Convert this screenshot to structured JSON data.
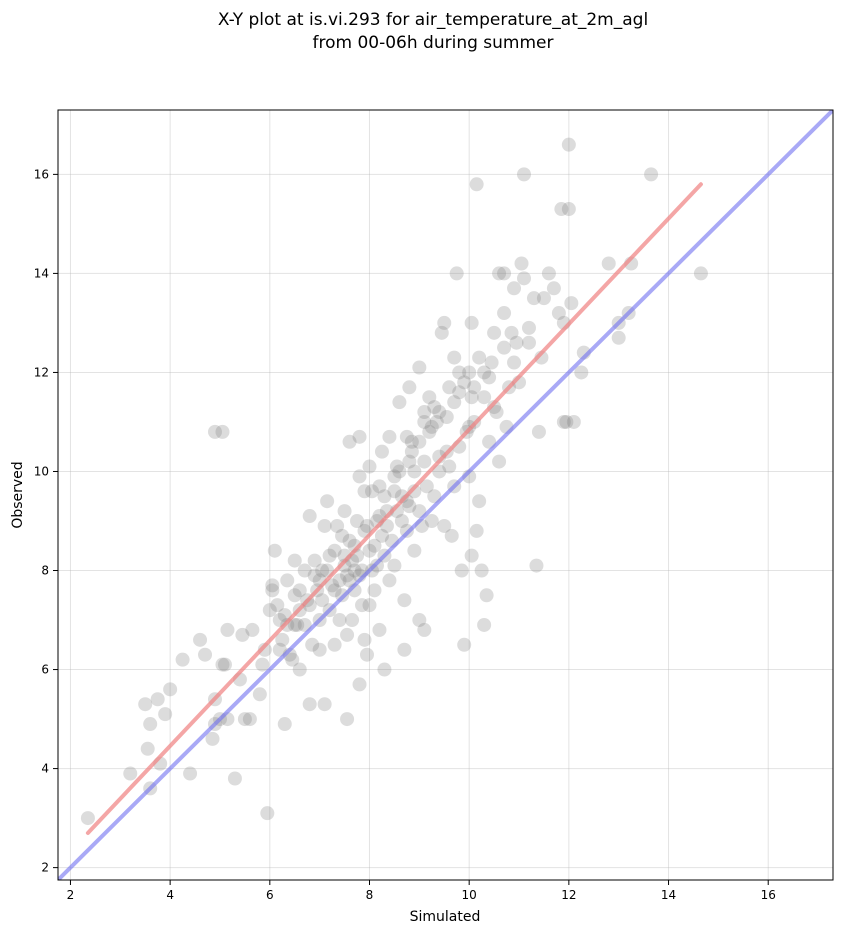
{
  "chart_data": {
    "type": "scatter",
    "title": [
      "X-Y plot at is.vi.293 for air_temperature_at_2m_agl",
      "from 00-06h during summer"
    ],
    "xlabel": "Simulated",
    "ylabel": "Observed",
    "xlim": [
      1.75,
      17.3
    ],
    "ylim": [
      1.75,
      17.3
    ],
    "xticks": [
      2,
      4,
      6,
      8,
      10,
      12,
      14,
      16
    ],
    "yticks": [
      2,
      4,
      6,
      8,
      10,
      12,
      14,
      16
    ],
    "grid": true,
    "colors": {
      "points": "#808080",
      "regression": "#f08080",
      "identity": "#7070f0"
    },
    "regression_line": {
      "x": [
        2.35,
        14.65
      ],
      "y": [
        2.7,
        15.8
      ]
    },
    "identity_line": {
      "x": [
        1.75,
        17.3
      ],
      "y": [
        1.75,
        17.3
      ]
    },
    "points": [
      [
        2.35,
        3.0
      ],
      [
        3.2,
        3.9
      ],
      [
        3.6,
        3.6
      ],
      [
        3.6,
        4.9
      ],
      [
        3.55,
        4.4
      ],
      [
        3.5,
        5.3
      ],
      [
        3.75,
        5.4
      ],
      [
        3.9,
        5.1
      ],
      [
        4.0,
        5.6
      ],
      [
        3.8,
        4.1
      ],
      [
        4.25,
        6.2
      ],
      [
        4.4,
        3.9
      ],
      [
        4.6,
        6.6
      ],
      [
        4.7,
        6.3
      ],
      [
        4.85,
        4.6
      ],
      [
        4.9,
        5.4
      ],
      [
        4.9,
        4.9
      ],
      [
        5.0,
        5.0
      ],
      [
        5.1,
        6.1
      ],
      [
        5.05,
        6.1
      ],
      [
        5.15,
        5.0
      ],
      [
        5.15,
        6.8
      ],
      [
        5.3,
        3.8
      ],
      [
        5.4,
        5.8
      ],
      [
        5.45,
        6.7
      ],
      [
        5.5,
        5.0
      ],
      [
        5.6,
        5.0
      ],
      [
        5.65,
        6.8
      ],
      [
        5.8,
        5.5
      ],
      [
        5.85,
        6.1
      ],
      [
        5.9,
        6.4
      ],
      [
        5.95,
        3.1
      ],
      [
        6.0,
        7.2
      ],
      [
        6.05,
        7.6
      ],
      [
        6.1,
        8.4
      ],
      [
        6.2,
        7.0
      ],
      [
        6.25,
        6.6
      ],
      [
        6.3,
        7.1
      ],
      [
        6.3,
        4.9
      ],
      [
        6.35,
        7.8
      ],
      [
        6.4,
        6.3
      ],
      [
        6.45,
        6.2
      ],
      [
        6.5,
        7.5
      ],
      [
        6.5,
        8.2
      ],
      [
        6.55,
        6.9
      ],
      [
        6.6,
        6.0
      ],
      [
        6.6,
        7.2
      ],
      [
        6.7,
        6.9
      ],
      [
        6.75,
        7.4
      ],
      [
        6.8,
        9.1
      ],
      [
        6.8,
        5.3
      ],
      [
        6.85,
        6.5
      ],
      [
        6.9,
        7.9
      ],
      [
        6.9,
        8.2
      ],
      [
        7.0,
        7.0
      ],
      [
        7.0,
        6.4
      ],
      [
        7.05,
        8.0
      ],
      [
        7.1,
        5.3
      ],
      [
        7.1,
        8.9
      ],
      [
        7.15,
        9.4
      ],
      [
        7.2,
        7.2
      ],
      [
        7.25,
        7.7
      ],
      [
        7.3,
        8.4
      ],
      [
        7.3,
        6.5
      ],
      [
        7.35,
        8.9
      ],
      [
        7.4,
        7.8
      ],
      [
        7.45,
        7.5
      ],
      [
        7.5,
        9.2
      ],
      [
        7.5,
        8.1
      ],
      [
        7.55,
        6.7
      ],
      [
        7.55,
        5.0
      ],
      [
        7.6,
        10.6
      ],
      [
        7.6,
        8.6
      ],
      [
        7.65,
        7.0
      ],
      [
        7.7,
        8.0
      ],
      [
        7.7,
        7.6
      ],
      [
        7.75,
        8.3
      ],
      [
        7.8,
        5.7
      ],
      [
        7.8,
        9.9
      ],
      [
        7.8,
        10.7
      ],
      [
        7.85,
        7.3
      ],
      [
        7.9,
        9.6
      ],
      [
        7.9,
        6.6
      ],
      [
        7.95,
        6.3
      ],
      [
        8.0,
        8.4
      ],
      [
        8.0,
        10.1
      ],
      [
        8.05,
        8.0
      ],
      [
        8.1,
        7.6
      ],
      [
        8.15,
        9.0
      ],
      [
        8.2,
        9.7
      ],
      [
        8.2,
        6.8
      ],
      [
        8.25,
        10.4
      ],
      [
        8.3,
        8.3
      ],
      [
        8.3,
        6.0
      ],
      [
        8.35,
        8.9
      ],
      [
        8.4,
        7.8
      ],
      [
        8.4,
        10.7
      ],
      [
        8.5,
        9.6
      ],
      [
        8.5,
        8.1
      ],
      [
        8.55,
        10.1
      ],
      [
        8.6,
        11.4
      ],
      [
        8.65,
        9.0
      ],
      [
        8.7,
        7.4
      ],
      [
        8.7,
        6.4
      ],
      [
        8.75,
        8.8
      ],
      [
        8.75,
        10.7
      ],
      [
        8.8,
        9.3
      ],
      [
        8.8,
        11.7
      ],
      [
        8.85,
        10.4
      ],
      [
        8.9,
        8.4
      ],
      [
        8.9,
        9.6
      ],
      [
        9.0,
        12.1
      ],
      [
        9.0,
        7.0
      ],
      [
        9.05,
        8.9
      ],
      [
        9.1,
        11.2
      ],
      [
        9.1,
        6.8
      ],
      [
        9.15,
        9.7
      ],
      [
        9.2,
        10.8
      ],
      [
        9.25,
        9.0
      ],
      [
        9.3,
        11.3
      ],
      [
        9.35,
        11.0
      ],
      [
        9.4,
        10.3
      ],
      [
        9.45,
        12.8
      ],
      [
        9.5,
        8.9
      ],
      [
        9.5,
        13.0
      ],
      [
        9.55,
        11.1
      ],
      [
        9.6,
        10.1
      ],
      [
        9.65,
        8.7
      ],
      [
        9.7,
        12.3
      ],
      [
        9.7,
        9.7
      ],
      [
        9.75,
        14.0
      ],
      [
        9.8,
        11.6
      ],
      [
        9.8,
        10.5
      ],
      [
        9.85,
        8.0
      ],
      [
        9.9,
        6.5
      ],
      [
        9.95,
        10.8
      ],
      [
        10.0,
        12.0
      ],
      [
        10.0,
        9.9
      ],
      [
        10.05,
        8.3
      ],
      [
        10.05,
        13.0
      ],
      [
        10.1,
        11.7
      ],
      [
        10.15,
        8.8
      ],
      [
        10.15,
        15.8
      ],
      [
        10.2,
        12.3
      ],
      [
        10.2,
        9.4
      ],
      [
        10.25,
        8.0
      ],
      [
        10.3,
        6.9
      ],
      [
        10.35,
        7.5
      ],
      [
        10.4,
        10.6
      ],
      [
        10.4,
        11.9
      ],
      [
        10.45,
        12.2
      ],
      [
        10.5,
        12.8
      ],
      [
        10.55,
        11.2
      ],
      [
        10.6,
        14.0
      ],
      [
        10.7,
        13.2
      ],
      [
        10.7,
        14.0
      ],
      [
        10.75,
        10.9
      ],
      [
        10.8,
        11.7
      ],
      [
        10.85,
        12.8
      ],
      [
        10.9,
        13.7
      ],
      [
        10.95,
        12.6
      ],
      [
        11.0,
        11.8
      ],
      [
        11.05,
        14.2
      ],
      [
        11.1,
        16.0
      ],
      [
        11.1,
        13.9
      ],
      [
        11.2,
        12.9
      ],
      [
        11.3,
        13.5
      ],
      [
        11.35,
        8.1
      ],
      [
        11.4,
        10.8
      ],
      [
        11.45,
        12.3
      ],
      [
        11.5,
        13.5
      ],
      [
        11.6,
        14.0
      ],
      [
        11.7,
        13.7
      ],
      [
        11.8,
        13.2
      ],
      [
        11.85,
        15.3
      ],
      [
        11.9,
        13.0
      ],
      [
        11.95,
        11.0
      ],
      [
        12.0,
        16.6
      ],
      [
        12.0,
        15.3
      ],
      [
        12.05,
        13.4
      ],
      [
        12.1,
        11.0
      ],
      [
        12.25,
        12.0
      ],
      [
        12.3,
        12.4
      ],
      [
        12.8,
        14.2
      ],
      [
        13.0,
        13.0
      ],
      [
        13.0,
        12.7
      ],
      [
        13.2,
        13.2
      ],
      [
        13.25,
        14.2
      ],
      [
        13.65,
        16.0
      ],
      [
        14.65,
        14.0
      ],
      [
        4.9,
        10.8
      ],
      [
        5.05,
        10.8
      ],
      [
        6.05,
        7.7
      ],
      [
        6.2,
        6.4
      ],
      [
        6.5,
        6.9
      ],
      [
        6.7,
        8.0
      ],
      [
        6.95,
        7.6
      ],
      [
        7.0,
        7.8
      ],
      [
        7.15,
        8.0
      ],
      [
        7.3,
        7.6
      ],
      [
        7.4,
        7.0
      ],
      [
        7.5,
        8.3
      ],
      [
        7.6,
        7.8
      ],
      [
        7.7,
        8.5
      ],
      [
        7.75,
        9.0
      ],
      [
        7.85,
        8.0
      ],
      [
        7.9,
        8.8
      ],
      [
        8.0,
        7.3
      ],
      [
        8.1,
        8.5
      ],
      [
        8.2,
        9.1
      ],
      [
        8.3,
        9.5
      ],
      [
        8.45,
        8.6
      ],
      [
        8.55,
        9.2
      ],
      [
        8.65,
        9.5
      ],
      [
        8.8,
        10.2
      ],
      [
        8.9,
        10.0
      ],
      [
        9.0,
        10.6
      ],
      [
        9.1,
        10.2
      ],
      [
        9.2,
        11.5
      ],
      [
        9.3,
        9.5
      ],
      [
        9.4,
        11.2
      ],
      [
        9.55,
        10.4
      ],
      [
        9.7,
        11.4
      ],
      [
        9.9,
        11.8
      ],
      [
        10.0,
        10.9
      ],
      [
        10.1,
        11.0
      ],
      [
        10.3,
        11.5
      ],
      [
        10.5,
        11.3
      ],
      [
        10.6,
        10.2
      ],
      [
        10.9,
        12.2
      ],
      [
        11.2,
        12.6
      ],
      [
        11.9,
        11.0
      ],
      [
        6.15,
        7.3
      ],
      [
        6.35,
        6.9
      ],
      [
        6.6,
        7.6
      ],
      [
        6.8,
        7.3
      ],
      [
        7.05,
        7.4
      ],
      [
        7.2,
        8.3
      ],
      [
        7.45,
        8.7
      ],
      [
        7.55,
        7.9
      ],
      [
        7.65,
        8.2
      ],
      [
        7.8,
        7.9
      ],
      [
        7.95,
        8.9
      ],
      [
        8.05,
        9.6
      ],
      [
        8.15,
        8.1
      ],
      [
        8.25,
        8.7
      ],
      [
        8.35,
        9.2
      ],
      [
        8.5,
        9.9
      ],
      [
        8.6,
        10.0
      ],
      [
        8.75,
        9.4
      ],
      [
        8.85,
        10.6
      ],
      [
        9.0,
        9.2
      ],
      [
        9.1,
        11.0
      ],
      [
        9.25,
        10.9
      ],
      [
        9.4,
        10.0
      ],
      [
        9.6,
        11.7
      ],
      [
        9.8,
        12.0
      ],
      [
        10.05,
        11.5
      ],
      [
        10.3,
        12.0
      ],
      [
        10.7,
        12.5
      ]
    ]
  }
}
